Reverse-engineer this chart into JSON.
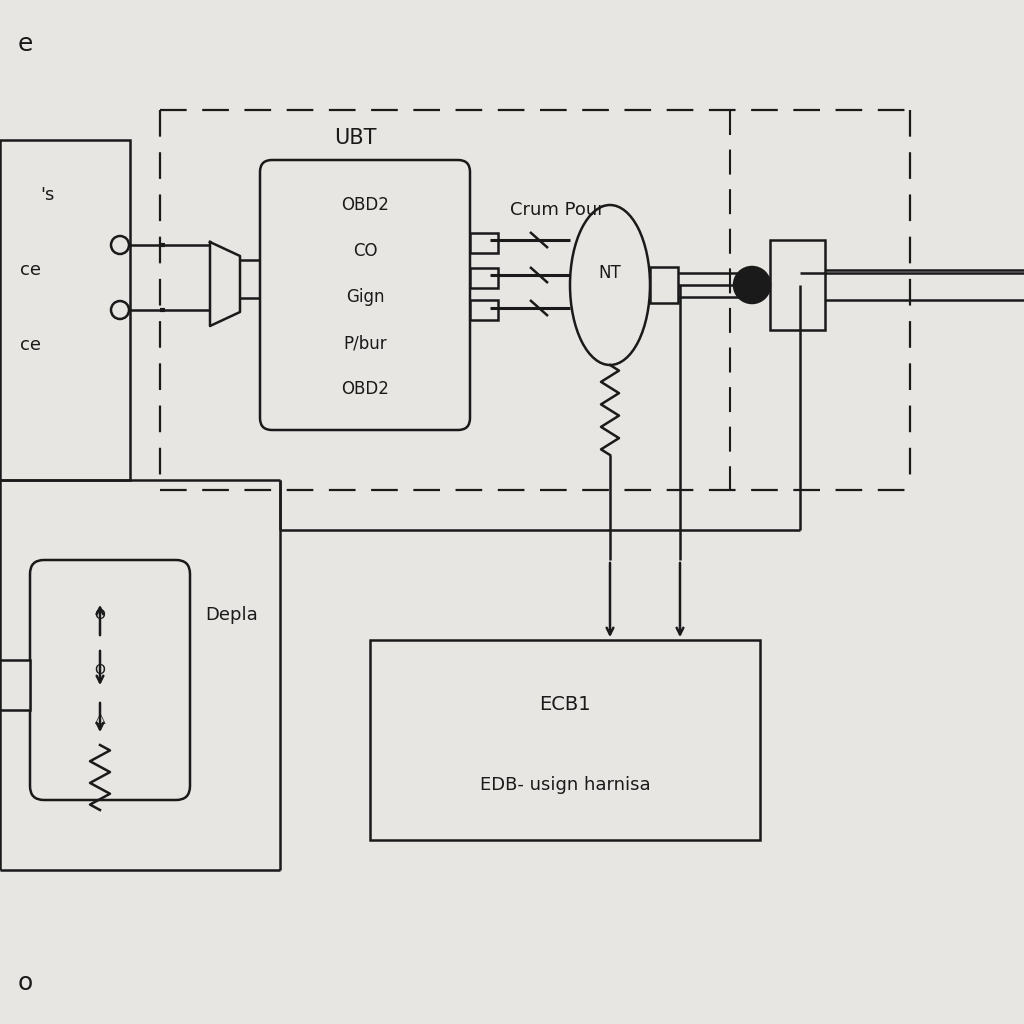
{
  "bg_color": "#e8e6e3",
  "line_color": "#1a1a1a",
  "figsize": [
    10.24,
    10.24
  ],
  "dpi": 100,
  "ubt_label": "UBT",
  "ubt_contents": [
    "OBD2",
    "CO",
    "Gign",
    "P/bur",
    "OBD2"
  ],
  "crum_pour_label": "Crum Pour",
  "nt_label": "NT",
  "depla_label": "Depla",
  "ecb1_label": "ECB1",
  "ecb1_sub": "EDB- usign harnisa",
  "title_top": "e",
  "title_bot": "o"
}
